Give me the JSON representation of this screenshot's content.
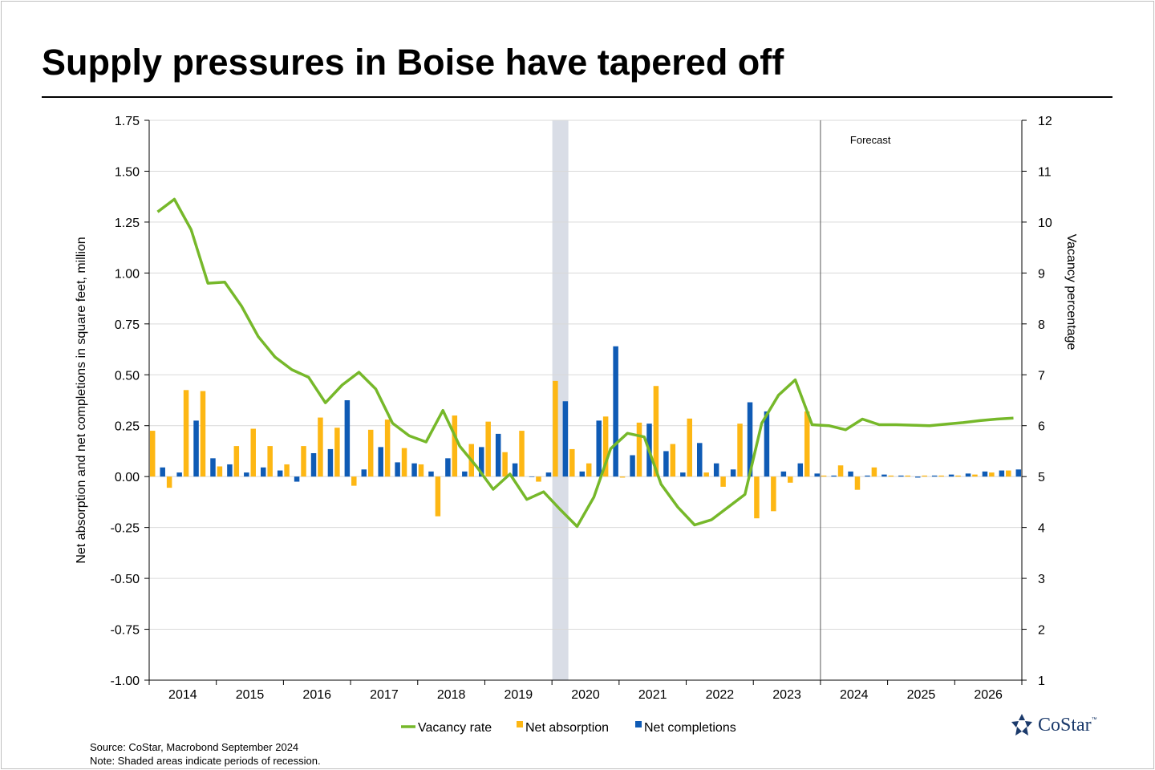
{
  "title": "Supply pressures in Boise have tapered off",
  "chart_data": {
    "type": "bar+line",
    "title": "Supply pressures in Boise have tapered off",
    "ylabel_left": "Net absorption and net completions in square feet, million",
    "ylabel_right": "Vacancy percentage",
    "ylim_left": [
      -1.0,
      1.75
    ],
    "ylim_right": [
      1,
      12
    ],
    "yticks_left": [
      "1.75",
      "1.50",
      "1.25",
      "1.00",
      "0.75",
      "0.50",
      "0.25",
      "0.00",
      "-0.25",
      "-0.50",
      "-0.75",
      "-1.00"
    ],
    "yticks_right": [
      "12",
      "11",
      "10",
      "9",
      "8",
      "7",
      "6",
      "5",
      "4",
      "3",
      "2",
      "1"
    ],
    "years": [
      "2014",
      "2015",
      "2016",
      "2017",
      "2018",
      "2019",
      "2020",
      "2021",
      "2022",
      "2023",
      "2024",
      "2025",
      "2026"
    ],
    "quarters_per_year": 4,
    "forecast_label": "Forecast",
    "forecast_start_index": 40,
    "recession_quarter_index": 24,
    "series": [
      {
        "name": "Vacancy rate",
        "kind": "line",
        "axis": "right",
        "color": "#76b82a",
        "values": [
          10.2,
          10.45,
          9.85,
          8.8,
          8.82,
          8.35,
          7.75,
          7.35,
          7.1,
          6.95,
          6.45,
          6.8,
          7.05,
          6.72,
          6.05,
          5.8,
          5.68,
          6.3,
          5.6,
          5.2,
          4.75,
          5.05,
          4.55,
          4.7,
          4.35,
          4.02,
          4.6,
          5.55,
          5.85,
          5.78,
          4.85,
          4.4,
          4.05,
          4.15,
          4.4,
          4.65,
          6.05,
          6.6,
          6.9,
          6.02,
          6.0,
          5.92,
          6.13,
          6.02,
          6.02,
          6.01,
          6.0,
          6.03,
          6.06,
          6.1,
          6.13,
          6.15
        ]
      },
      {
        "name": "Net absorption",
        "kind": "bar",
        "axis": "left",
        "color": "#fdb714",
        "values": [
          0.225,
          -0.055,
          0.425,
          0.42,
          0.05,
          0.15,
          0.235,
          0.15,
          0.06,
          0.15,
          0.29,
          0.24,
          -0.045,
          0.23,
          0.28,
          0.14,
          0.06,
          -0.195,
          0.3,
          0.16,
          0.27,
          0.12,
          0.225,
          -0.025,
          0.47,
          0.135,
          0.065,
          0.295,
          -0.005,
          0.265,
          0.445,
          0.16,
          0.285,
          0.02,
          -0.05,
          0.26,
          -0.205,
          -0.17,
          -0.03,
          0.32,
          0.005,
          0.055,
          -0.065,
          0.045,
          0.005,
          0.005,
          0.005,
          0.005,
          0.005,
          0.01,
          0.02,
          0.03
        ]
      },
      {
        "name": "Net completions",
        "kind": "bar",
        "axis": "left",
        "color": "#0f5bb5",
        "values": [
          0.045,
          0.02,
          0.275,
          0.09,
          0.06,
          0.02,
          0.045,
          0.03,
          -0.025,
          0.115,
          0.135,
          0.375,
          0.035,
          0.145,
          0.07,
          0.065,
          0.025,
          0.09,
          0.025,
          0.145,
          0.21,
          0.065,
          0.0,
          0.02,
          0.37,
          0.025,
          0.275,
          0.64,
          0.105,
          0.26,
          0.125,
          0.02,
          0.165,
          0.065,
          0.035,
          0.365,
          0.32,
          0.025,
          0.065,
          0.015,
          0.005,
          0.025,
          0.005,
          0.01,
          0.005,
          -0.005,
          0.005,
          0.01,
          0.015,
          0.025,
          0.03,
          0.035
        ]
      }
    ],
    "legend": [
      "Vacancy rate",
      "Net absorption",
      "Net completions"
    ],
    "legend_position": "bottom-center"
  },
  "source": "Source: CoStar, Macrobond September 2024",
  "note": "Note: Shaded areas indicate periods of recession.",
  "logo": {
    "text": "CoStar",
    "tm": "™"
  },
  "colors": {
    "vacancy": "#76b82a",
    "absorption": "#fdb714",
    "completions": "#0f5bb5",
    "recession": "#d9dde6"
  }
}
